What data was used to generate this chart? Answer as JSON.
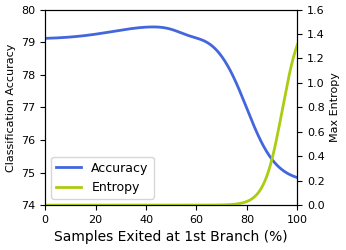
{
  "xlabel": "Samples Exited at 1st Branch (%)",
  "ylabel_left": "Classification Accuracy",
  "ylabel_right": "Max Entropy",
  "xlim": [
    0,
    100
  ],
  "ylim_left": [
    74,
    80
  ],
  "ylim_right": [
    0.0,
    1.6
  ],
  "xticks": [
    0,
    20,
    40,
    60,
    80,
    100
  ],
  "yticks_left": [
    74,
    75,
    76,
    77,
    78,
    79,
    80
  ],
  "yticks_right": [
    0.0,
    0.2,
    0.4,
    0.6,
    0.8,
    1.0,
    1.2,
    1.4,
    1.6
  ],
  "accuracy_color": "#4466dd",
  "entropy_color": "#aacc11",
  "legend_labels": [
    "Accuracy",
    "Entropy"
  ],
  "legend_loc": "lower left",
  "linewidth": 2.0,
  "xlabel_fontsize": 10,
  "ylabel_fontsize": 8,
  "tick_fontsize": 8,
  "legend_fontsize": 9
}
